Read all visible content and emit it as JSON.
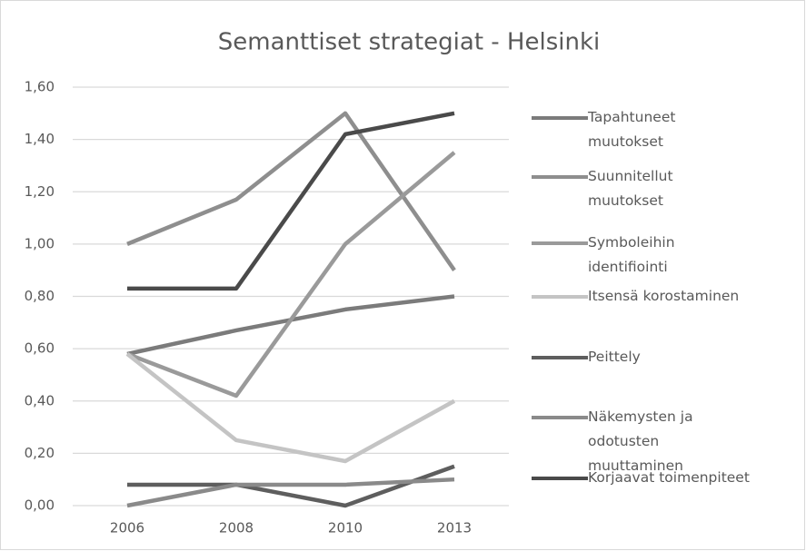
{
  "chart_data": {
    "type": "line",
    "title": "Semanttiset strategiat - Helsinki",
    "categories": [
      "2006",
      "2008",
      "2010",
      "2013"
    ],
    "series": [
      {
        "name": "Tapahtuneet muutokset",
        "color": "#7b7b7b",
        "values": [
          0.58,
          0.67,
          0.75,
          0.8
        ]
      },
      {
        "name": "Suunnitellut muutokset",
        "color": "#8e8e8e",
        "values": [
          1.0,
          1.17,
          1.5,
          0.9
        ]
      },
      {
        "name": "Symboleihin identifiointi",
        "color": "#9a9a9a",
        "values": [
          0.58,
          0.42,
          1.0,
          1.35
        ]
      },
      {
        "name": "Itsensä korostaminen",
        "color": "#c4c4c4",
        "values": [
          0.58,
          0.25,
          0.17,
          0.4
        ]
      },
      {
        "name": "Peittely",
        "color": "#5e5e5e",
        "values": [
          0.08,
          0.08,
          0.0,
          0.15
        ]
      },
      {
        "name": "Näkemysten ja odotusten muuttaminen",
        "color": "#8a8a8a",
        "values": [
          0.0,
          0.08,
          0.08,
          0.1
        ]
      },
      {
        "name": "Korjaavat toimenpiteet",
        "color": "#4a4a4a",
        "values": [
          0.83,
          0.83,
          1.42,
          1.5
        ]
      }
    ],
    "ylim": [
      0,
      1.6
    ],
    "yticks": [
      {
        "value": 0,
        "label": "0,00"
      },
      {
        "value": 0.2,
        "label": "0,20"
      },
      {
        "value": 0.4,
        "label": "0,40"
      },
      {
        "value": 0.6,
        "label": "0,60"
      },
      {
        "value": 0.8,
        "label": "0,80"
      },
      {
        "value": 1.0,
        "label": "1,00"
      },
      {
        "value": 1.2,
        "label": "1,20"
      },
      {
        "value": 1.4,
        "label": "1,40"
      },
      {
        "value": 1.6,
        "label": "1,60"
      }
    ],
    "grid": true,
    "legend": "right"
  }
}
